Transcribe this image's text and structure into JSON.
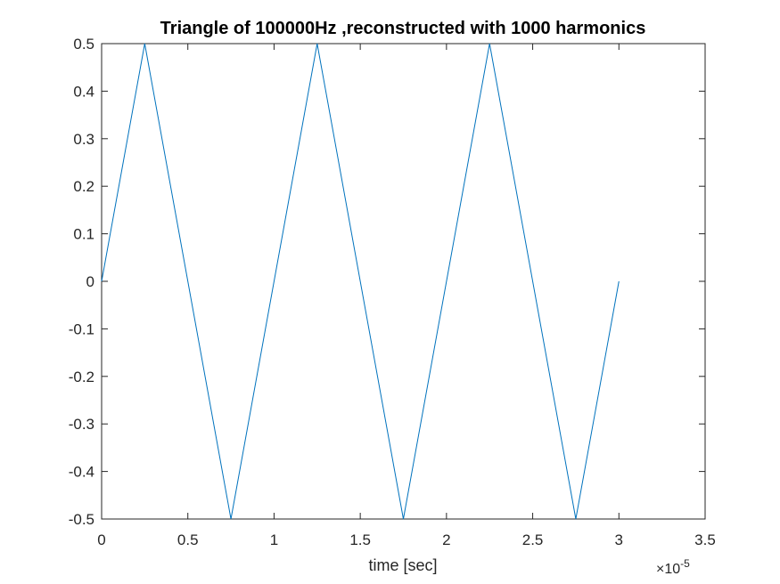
{
  "chart_data": {
    "type": "line",
    "title": "Triangle of 100000Hz ,reconstructed with 1000 harmonics",
    "xlabel": "time [sec]",
    "ylabel": "",
    "x_exponent_label": "×10",
    "x_exponent_power": "-5",
    "xlim": [
      0,
      3.5
    ],
    "ylim": [
      -0.5,
      0.5
    ],
    "x_ticks": [
      0,
      0.5,
      1,
      1.5,
      2,
      2.5,
      3,
      3.5
    ],
    "x_tick_labels": [
      "0",
      "0.5",
      "1",
      "1.5",
      "2",
      "2.5",
      "3",
      "3.5"
    ],
    "y_ticks": [
      -0.5,
      -0.4,
      -0.3,
      -0.2,
      -0.1,
      0,
      0.1,
      0.2,
      0.3,
      0.4,
      0.5
    ],
    "y_tick_labels": [
      "-0.5",
      "-0.4",
      "-0.3",
      "-0.2",
      "-0.1",
      "0",
      "0.1",
      "0.2",
      "0.3",
      "0.4",
      "0.5"
    ],
    "grid": false,
    "series": [
      {
        "color": "#0072BD",
        "x": [
          0,
          0.25,
          0.75,
          1.25,
          1.75,
          2.25,
          2.75,
          3.0
        ],
        "y": [
          0,
          0.5,
          -0.5,
          0.5,
          -0.5,
          0.5,
          -0.5,
          0
        ]
      }
    ]
  }
}
